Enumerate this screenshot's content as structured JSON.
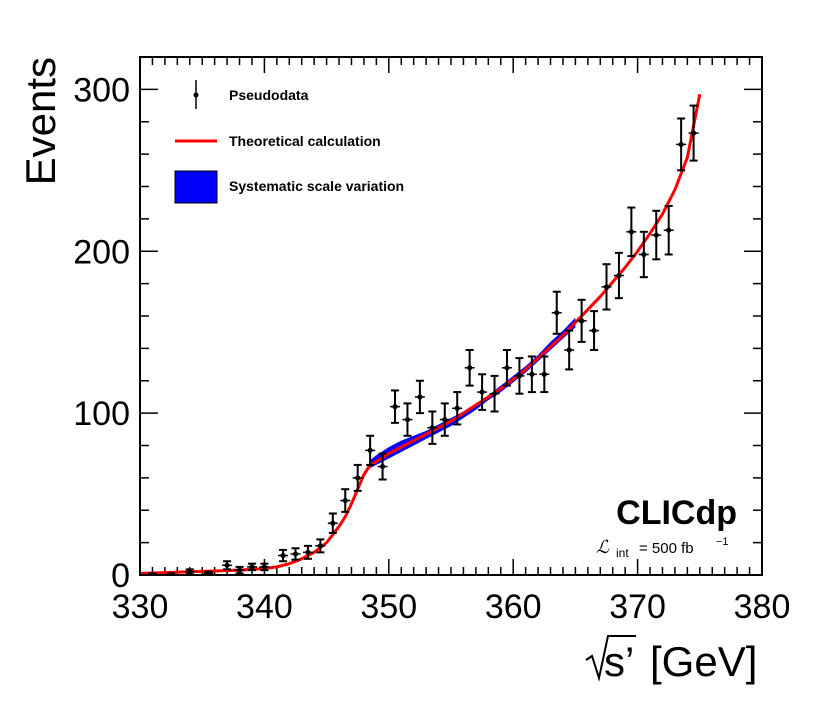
{
  "chart_data": {
    "type": "line",
    "xlabel": "[GeV]",
    "xlabel_symbol": "s’",
    "ylabel": "Events",
    "xlim": [
      330,
      380
    ],
    "ylim": [
      0,
      320
    ],
    "x_ticks": [
      "330",
      "340",
      "350",
      "360",
      "370",
      "380"
    ],
    "y_ticks": [
      "0",
      "100",
      "200",
      "300"
    ],
    "legend": {
      "position": "top-left",
      "entries": [
        {
          "label": "Pseudodata",
          "style": "points"
        },
        {
          "label": "Theoretical calculation",
          "style": "line",
          "color": "#ff0000"
        },
        {
          "label": "Systematic scale variation",
          "style": "band",
          "color": "#0000ff"
        }
      ]
    },
    "annotation": {
      "collab": "CLICdp",
      "lumi_symbol": "ℒ",
      "lumi_sub": "int",
      "lumi_eq": "= 500 fb",
      "lumi_exp": "−1"
    },
    "theory": {
      "color": "#ff0000",
      "x": [
        330,
        332,
        334,
        336,
        338,
        340,
        341,
        342,
        343,
        344,
        345,
        346,
        346.5,
        347,
        347.5,
        348,
        348.5,
        349,
        350,
        351,
        352,
        353,
        354,
        355,
        356,
        357,
        358,
        359,
        360,
        361,
        362,
        363,
        364,
        365,
        366,
        367,
        368,
        369,
        370,
        371,
        372,
        373,
        374,
        375
      ],
      "y": [
        1,
        1.5,
        2,
        2.5,
        3,
        4,
        5,
        7,
        10,
        14,
        20,
        30,
        36,
        44,
        53,
        62,
        68,
        70,
        75,
        79,
        83,
        87,
        91,
        95,
        100,
        105,
        110,
        115,
        121,
        127,
        134,
        141,
        148,
        156,
        164,
        172,
        181,
        190,
        200,
        211,
        223,
        238,
        258,
        297
      ]
    },
    "band": {
      "color": "#0000ff",
      "x": [
        348.5,
        349,
        350,
        351,
        352,
        353,
        354,
        355,
        356,
        357,
        358,
        359,
        360,
        361,
        362,
        363,
        364,
        365
      ],
      "upper": [
        71,
        74,
        79,
        83,
        86,
        89,
        93,
        97,
        101,
        106,
        111,
        117,
        123,
        129,
        136,
        144,
        151,
        159
      ],
      "lower": [
        66,
        68,
        72,
        76,
        80,
        84,
        88,
        92,
        97,
        102,
        108,
        113,
        119,
        125,
        132,
        139,
        146,
        153
      ]
    },
    "pseudodata": {
      "x": [
        331,
        332.5,
        334,
        335.5,
        337,
        338,
        339,
        340,
        341.5,
        342.5,
        343.5,
        344.5,
        345.5,
        346.5,
        347.5,
        348.5,
        349.5,
        350.5,
        351.5,
        352.5,
        353.5,
        354.5,
        355.5,
        356.5,
        357.5,
        358.5,
        359.5,
        360.5,
        361.5,
        362.5,
        363.5,
        364.5,
        365.5,
        366.5,
        367.5,
        368.5,
        369.5,
        370.5,
        371.5,
        372.5,
        373.5,
        374.5
      ],
      "y": [
        0,
        0,
        2,
        1,
        6,
        3,
        5,
        5,
        12,
        13,
        14,
        18,
        32,
        46,
        60,
        77,
        67,
        104,
        96,
        110,
        91,
        96,
        103,
        128,
        113,
        112,
        128,
        123,
        124,
        124,
        162,
        139,
        157,
        151,
        178,
        185,
        212,
        198,
        210,
        213,
        266,
        273
      ],
      "err": [
        1,
        1,
        1.5,
        1,
        2.5,
        2,
        2,
        2,
        3.5,
        3.5,
        4,
        4,
        6,
        7,
        8,
        9,
        8,
        10,
        10,
        10,
        10,
        10,
        10,
        11,
        11,
        11,
        11,
        11,
        11,
        11,
        13,
        12,
        13,
        12,
        14,
        14,
        15,
        14,
        15,
        15,
        16,
        17
      ]
    }
  }
}
